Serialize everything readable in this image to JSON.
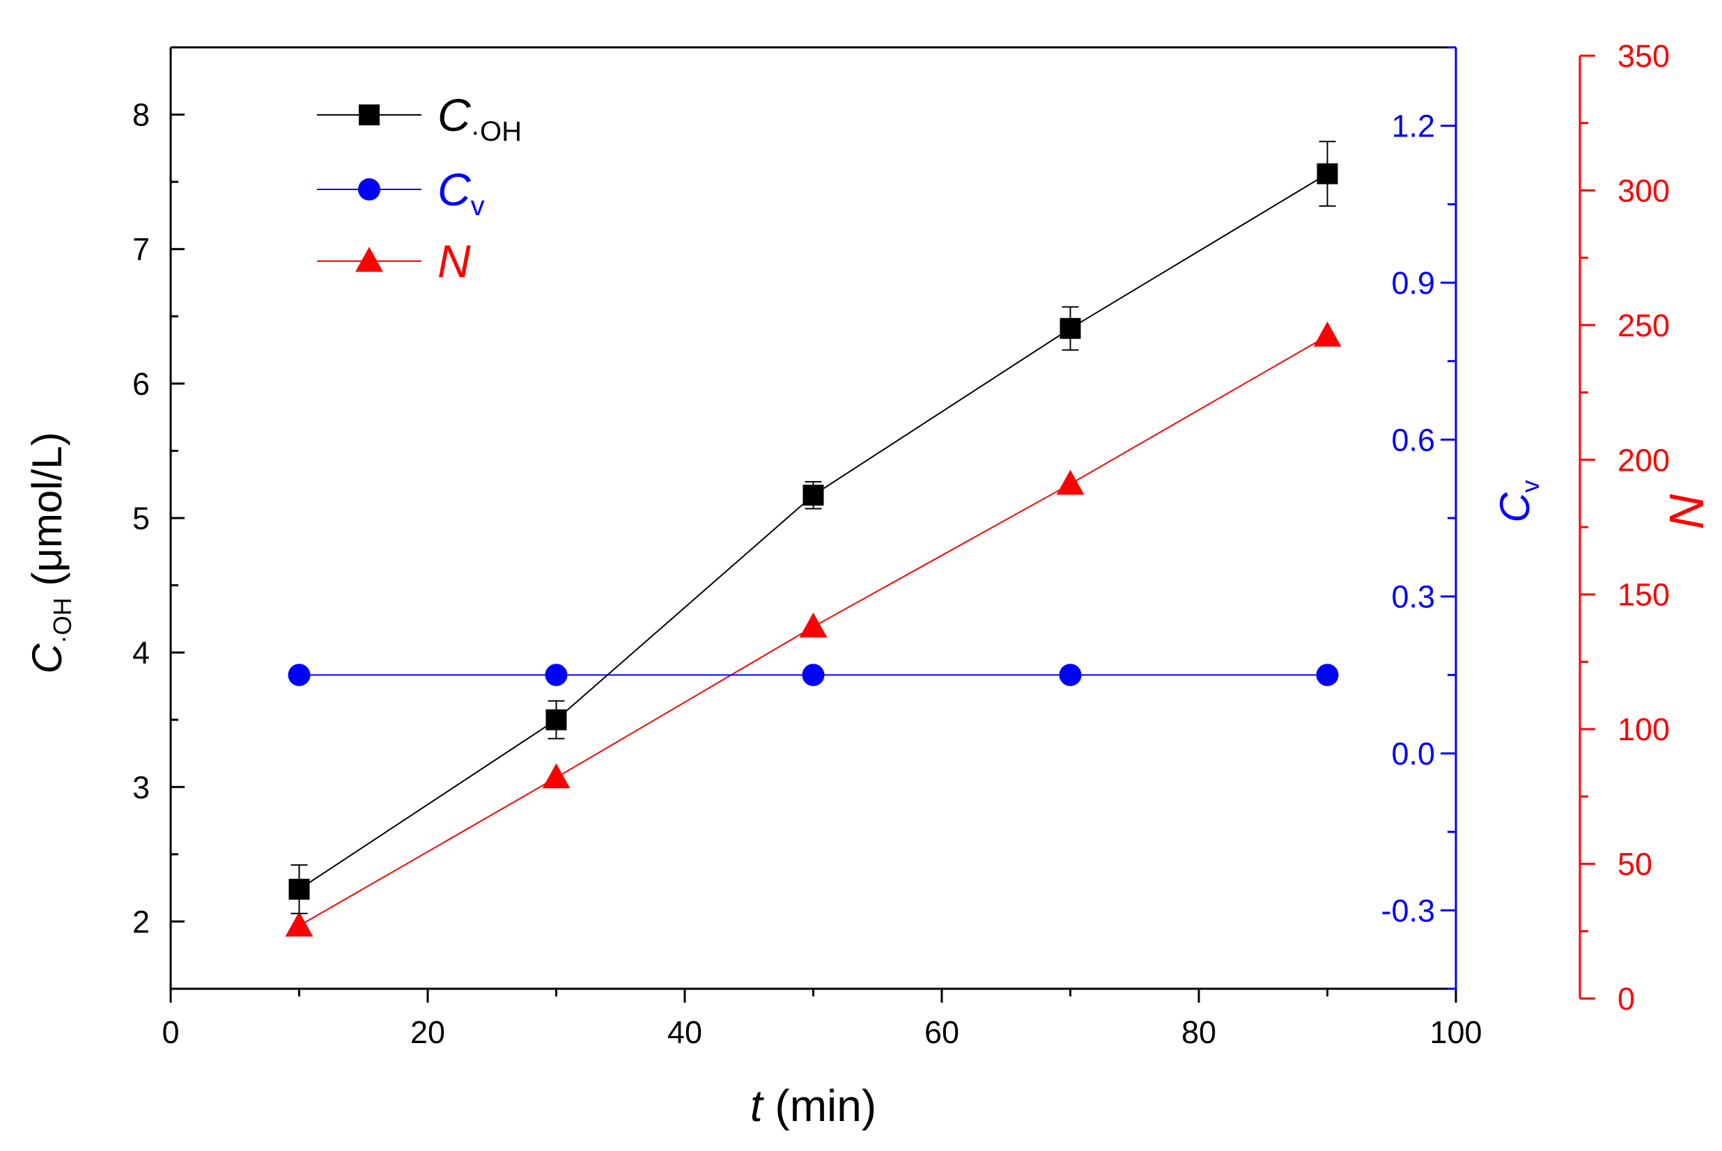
{
  "chart_data": {
    "type": "line",
    "x": [
      10,
      30,
      50,
      70,
      90
    ],
    "xlabel": {
      "var": "t",
      "unit": " (min)"
    },
    "xlim": [
      0,
      100
    ],
    "xticks": [
      0,
      20,
      40,
      60,
      80,
      100
    ],
    "xtick_labels": [
      "0",
      "20",
      "40",
      "60",
      "80",
      "100"
    ],
    "axes": {
      "left": {
        "label_main": "C",
        "label_sub": "·OH",
        "label_unit": " (μmol/L)",
        "ylim": [
          1.5,
          8.5
        ],
        "ticks": [
          2,
          3,
          4,
          5,
          6,
          7,
          8
        ],
        "tick_labels": [
          "2",
          "3",
          "4",
          "5",
          "6",
          "7",
          "8"
        ],
        "minor_step": 0.5,
        "color": "#000000"
      },
      "right_inner": {
        "label_main": "C",
        "label_sub": "v",
        "ylim": [
          -0.45,
          1.35
        ],
        "ticks": [
          -0.3,
          0.0,
          0.3,
          0.6,
          0.9,
          1.2
        ],
        "tick_labels": [
          "-0.3",
          "0.0",
          "0.3",
          "0.6",
          "0.9",
          "1.2"
        ],
        "minor_step": 0.15,
        "color": "#0000ff"
      },
      "right_outer": {
        "label_main": "N",
        "ylim": [
          0,
          350
        ],
        "ticks": [
          0,
          50,
          100,
          150,
          200,
          250,
          300,
          350
        ],
        "tick_labels": [
          "0",
          "50",
          "100",
          "150",
          "200",
          "250",
          "300",
          "350"
        ],
        "minor_step": 25,
        "color": "#ff0000"
      }
    },
    "series": [
      {
        "name": "C·OH",
        "legend_main": "C",
        "legend_sub": "·OH",
        "axis": "left",
        "values": [
          2.24,
          3.5,
          5.17,
          6.41,
          7.56
        ],
        "error": [
          0.18,
          0.14,
          0.1,
          0.16,
          0.24
        ],
        "marker": "square",
        "color": "#000000"
      },
      {
        "name": "Cv",
        "legend_main": "C",
        "legend_sub": "v",
        "axis": "right_inner",
        "values": [
          0.15,
          0.15,
          0.15,
          0.15,
          0.15
        ],
        "marker": "circle",
        "color": "#0000ff"
      },
      {
        "name": "N",
        "legend_main": "N",
        "legend_sub": "",
        "axis": "right_outer",
        "values": [
          27,
          82,
          138,
          191,
          246
        ],
        "marker": "triangle",
        "color": "#ff0000"
      }
    ],
    "legend_position": "top-left",
    "grid": false
  }
}
